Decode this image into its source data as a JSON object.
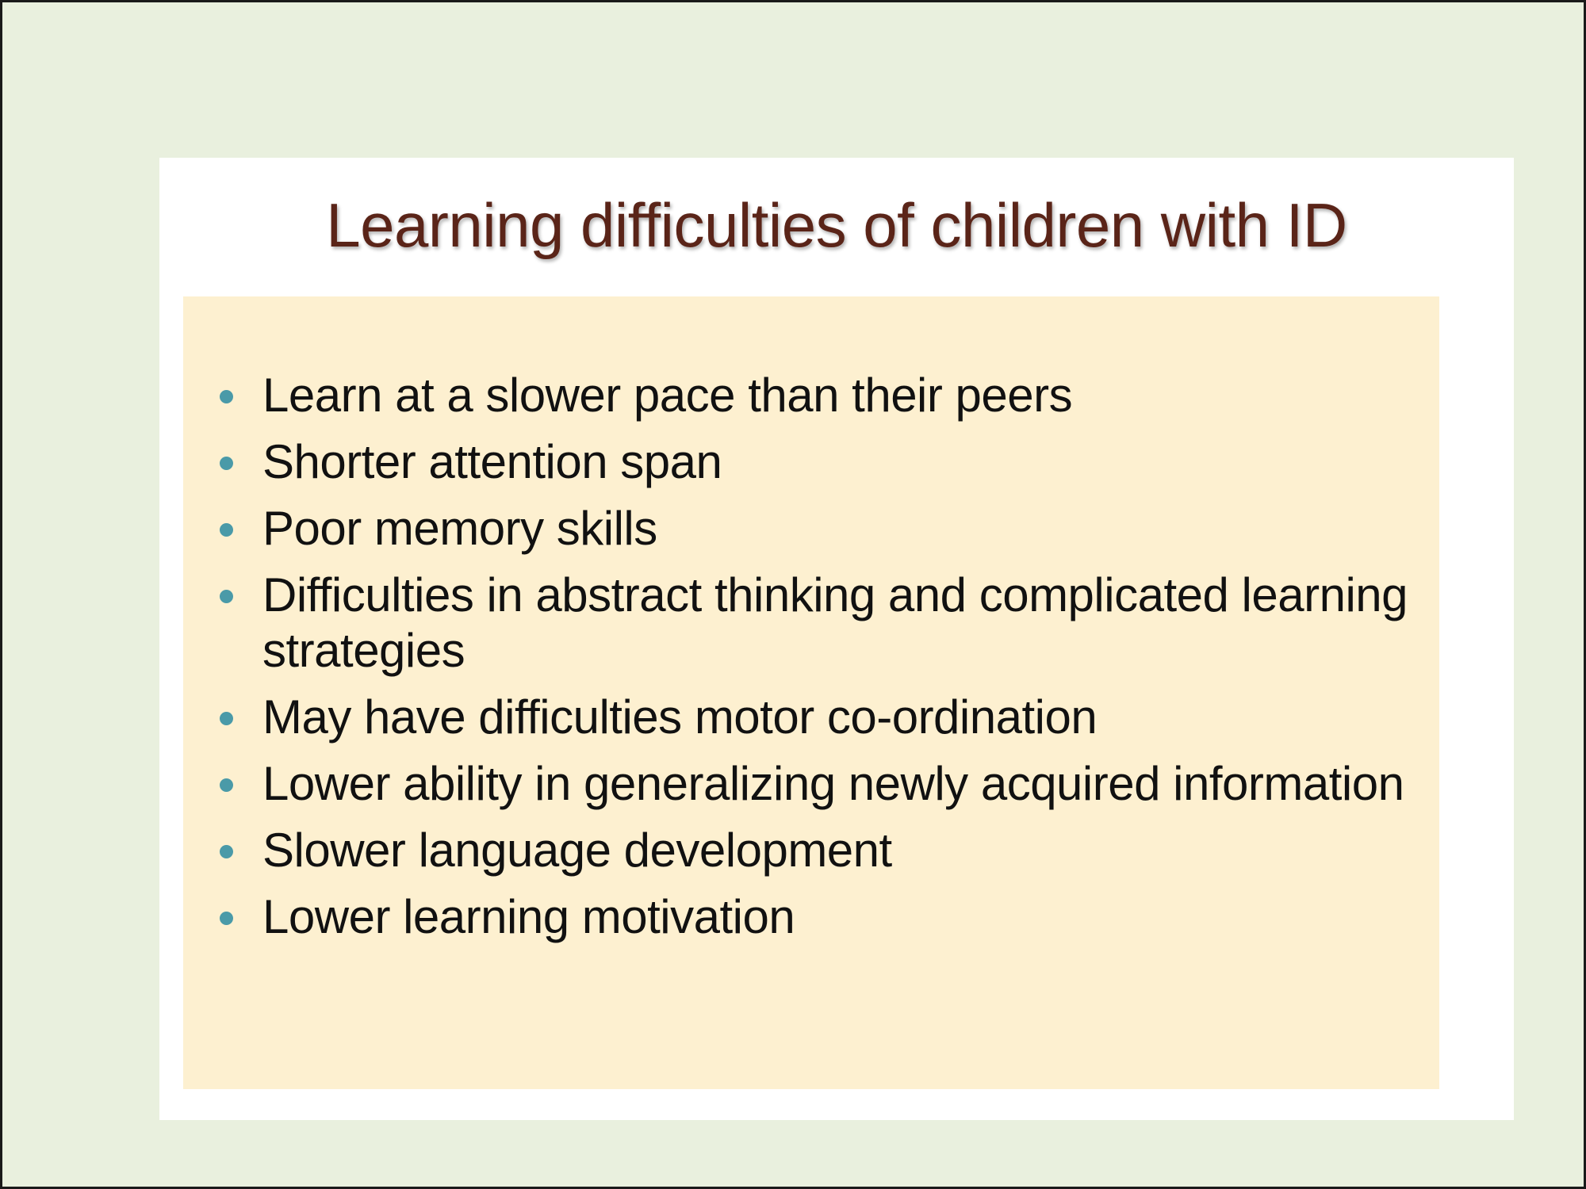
{
  "slide": {
    "title": "Learning difficulties of children with ID",
    "bullets": [
      "Learn at a slower pace than their peers",
      "Shorter attention span",
      "Poor memory skills",
      "Difficulties in abstract thinking and complicated learning strategies",
      "May have difficulties motor co-ordination",
      "Lower ability in generalizing newly acquired information",
      "Slower language development",
      "Lower learning motivation"
    ]
  },
  "colors": {
    "background": "#e9f0de",
    "card": "#ffffff",
    "content_box": "#fdf0d0",
    "title": "#5a2418",
    "bullet": "#4a9aa8",
    "text": "#111111"
  },
  "icons": {
    "bullet": "bullet-dot-icon"
  }
}
